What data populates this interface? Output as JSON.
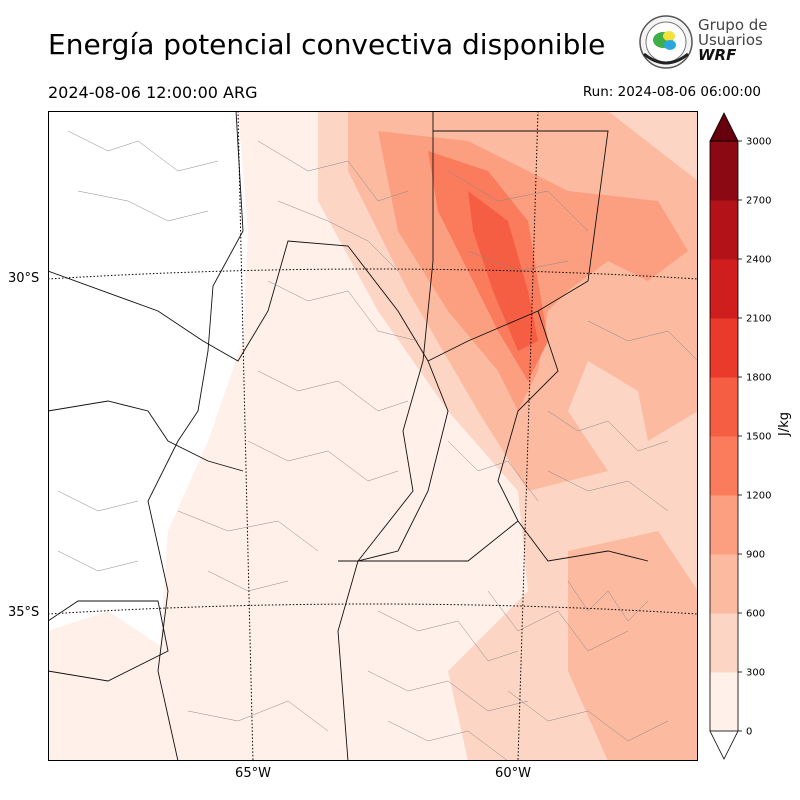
{
  "title": "Energía potencial convectiva disponible",
  "valid_time": "2024-08-06 12:00:00 ARG",
  "run_time": "Run: 2024-08-06 06:00:00",
  "logo": {
    "line1": "Grupo de",
    "line2": "Usuarios",
    "line3": "WRF",
    "icon": "globe-seal-icon"
  },
  "map": {
    "lat_labels": [
      "30°S",
      "35°S"
    ],
    "lon_labels": [
      "65°W",
      "60°W"
    ]
  },
  "colorbar": {
    "unit": "J/kg",
    "ticks": [
      "0",
      "300",
      "600",
      "900",
      "1200",
      "1500",
      "1800",
      "2100",
      "2400",
      "2700",
      "3000"
    ],
    "colors": [
      "#fff0e9",
      "#fdd5c4",
      "#fcbba0",
      "#fc9f80",
      "#fb7c5c",
      "#f65e44",
      "#ea3a2c",
      "#d01e1f",
      "#b21218",
      "#8a0913",
      "#67000d"
    ]
  },
  "chart_data": {
    "type": "heatmap",
    "variable": "CAPE",
    "unit": "J/kg",
    "levels": [
      0,
      300,
      600,
      900,
      1200,
      1500,
      1800,
      2100,
      2400,
      2700,
      3000
    ],
    "max_shown_level": "1500-1800",
    "colorbar_orientation": "vertical, right"
  }
}
